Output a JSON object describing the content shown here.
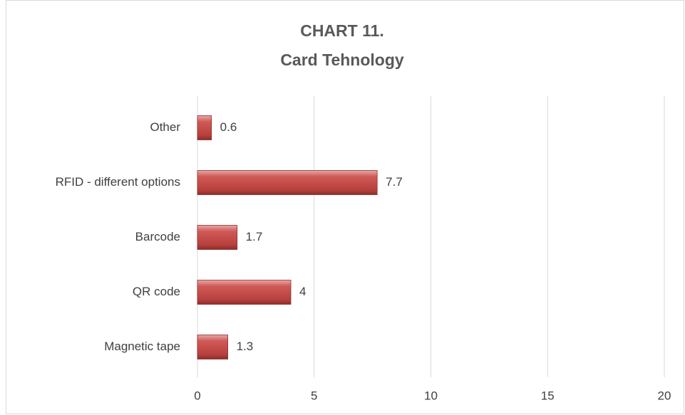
{
  "chart_data": {
    "type": "bar",
    "orientation": "horizontal",
    "title": [
      "CHART 11.",
      "Card Tehnology"
    ],
    "categories": [
      "Magnetic tape",
      "QR code",
      "Barcode",
      "RFID - different options",
      "Other"
    ],
    "values": [
      1.3,
      4,
      1.7,
      7.7,
      0.6
    ],
    "color": "#c0504d",
    "xlim": [
      0,
      20
    ],
    "xticks": [
      0,
      5,
      10,
      15,
      20
    ],
    "grid": true
  }
}
